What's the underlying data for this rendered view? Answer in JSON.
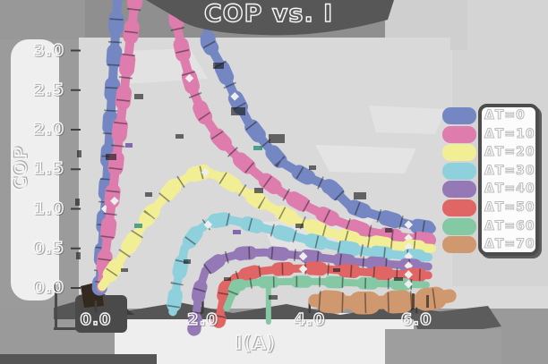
{
  "window": {
    "title": "COP vs. I"
  },
  "chart_data": {
    "type": "line",
    "title": "COP vs. I",
    "xlabel": "I(A)",
    "ylabel": "COP",
    "xlim": [
      -0.3,
      6.6
    ],
    "ylim": [
      -0.26,
      3.26
    ],
    "grid": false,
    "legend_position": "right",
    "style_note": "hand-painted ribbon strokes, hollow white outline text, white diamond markers",
    "x_ticks": {
      "values": [
        0,
        2,
        4,
        6
      ],
      "labels": [
        "0.0",
        "2.0",
        "4.0",
        "6.0"
      ]
    },
    "y_ticks": {
      "values": [
        0,
        0.5,
        1,
        1.5,
        2,
        2.5,
        3
      ],
      "labels": [
        "0.0",
        "0.5",
        "1.0",
        "1.5",
        "2.0",
        "2.5",
        "3.0"
      ]
    },
    "series": [
      {
        "name": "ΔT=0",
        "color": "#7487c2",
        "stroke_width": 10,
        "points": [
          [
            0.07,
            0.0
          ],
          [
            0.2,
            1.3
          ],
          [
            0.42,
            3.8
          ],
          [
            1.2,
            6.5
          ],
          [
            2.02,
            4.2
          ],
          [
            2.1,
            3.1
          ],
          [
            2.35,
            2.8
          ],
          [
            2.6,
            2.42
          ],
          [
            2.85,
            2.1
          ],
          [
            3.1,
            1.88
          ],
          [
            3.45,
            1.6
          ],
          [
            3.9,
            1.42
          ],
          [
            4.4,
            1.27
          ],
          [
            4.75,
            1.04
          ],
          [
            5.1,
            0.95
          ],
          [
            5.6,
            0.85
          ],
          [
            6.0,
            0.78
          ],
          [
            6.28,
            0.75
          ]
        ],
        "markers": [
          [
            0.18,
            1.0
          ],
          [
            2.6,
            2.42
          ],
          [
            5.85,
            0.8
          ]
        ],
        "drip": null
      },
      {
        "name": "ΔT=10",
        "color": "#de7cad",
        "stroke_width": 10,
        "points": [
          [
            0.1,
            0.0
          ],
          [
            0.3,
            1.1
          ],
          [
            0.55,
            2.6
          ],
          [
            0.78,
            3.9
          ],
          [
            1.05,
            5.4
          ],
          [
            1.42,
            4.1
          ],
          [
            1.52,
            3.3
          ],
          [
            1.65,
            2.9
          ],
          [
            1.82,
            2.5
          ],
          [
            2.0,
            2.2
          ],
          [
            2.3,
            1.9
          ],
          [
            2.7,
            1.62
          ],
          [
            3.05,
            1.42
          ],
          [
            3.5,
            1.2
          ],
          [
            3.95,
            1.03
          ],
          [
            4.5,
            0.85
          ],
          [
            5.0,
            0.73
          ],
          [
            5.5,
            0.66
          ],
          [
            6.0,
            0.62
          ],
          [
            6.28,
            0.6
          ]
        ],
        "markers": [
          [
            0.35,
            1.1
          ],
          [
            1.75,
            2.65
          ],
          [
            5.85,
            0.63
          ]
        ],
        "drip": null
      },
      {
        "name": "ΔT=20",
        "color": "#f2ee96",
        "stroke_width": 10,
        "points": [
          [
            0.12,
            0.02
          ],
          [
            0.55,
            0.45
          ],
          [
            1.0,
            0.92
          ],
          [
            1.45,
            1.28
          ],
          [
            1.8,
            1.43
          ],
          [
            2.05,
            1.47
          ],
          [
            2.35,
            1.4
          ],
          [
            2.75,
            1.23
          ],
          [
            3.1,
            1.08
          ],
          [
            3.7,
            0.87
          ],
          [
            4.2,
            0.73
          ],
          [
            4.8,
            0.62
          ],
          [
            5.4,
            0.55
          ],
          [
            6.0,
            0.51
          ],
          [
            6.28,
            0.5
          ]
        ],
        "markers": [
          [
            2.05,
            1.46
          ],
          [
            5.85,
            0.52
          ]
        ],
        "drip": null
      },
      {
        "name": "ΔT=30",
        "color": "#8fd0dd",
        "stroke_width": 9.5,
        "points": [
          [
            1.44,
            -0.3
          ],
          [
            1.52,
            0.05
          ],
          [
            1.66,
            0.5
          ],
          [
            1.9,
            0.72
          ],
          [
            2.15,
            0.84
          ],
          [
            2.45,
            0.87
          ],
          [
            2.85,
            0.81
          ],
          [
            3.35,
            0.72
          ],
          [
            3.95,
            0.61
          ],
          [
            4.55,
            0.52
          ],
          [
            5.15,
            0.45
          ],
          [
            5.75,
            0.41
          ],
          [
            6.22,
            0.39
          ]
        ],
        "markers": [
          [
            2.1,
            0.8
          ],
          [
            5.85,
            0.4
          ]
        ],
        "drip": null
      },
      {
        "name": "ΔT=40",
        "color": "#9579b6",
        "stroke_width": 9,
        "points": [
          [
            1.84,
            -0.52
          ],
          [
            1.93,
            -0.05
          ],
          [
            2.05,
            0.22
          ],
          [
            2.35,
            0.37
          ],
          [
            2.75,
            0.44
          ],
          [
            3.15,
            0.45
          ],
          [
            3.65,
            0.42
          ],
          [
            4.25,
            0.38
          ],
          [
            4.85,
            0.33
          ],
          [
            5.45,
            0.3
          ],
          [
            6.0,
            0.28
          ],
          [
            6.22,
            0.27
          ]
        ],
        "markers": [
          [
            3.88,
            0.4
          ],
          [
            5.85,
            0.28
          ]
        ],
        "drip": null
      },
      {
        "name": "ΔT=50",
        "color": "#e06565",
        "stroke_width": 9,
        "points": [
          [
            2.3,
            -0.42
          ],
          [
            2.42,
            0.0
          ],
          [
            2.6,
            0.13
          ],
          [
            2.95,
            0.2
          ],
          [
            3.45,
            0.24
          ],
          [
            4.05,
            0.25
          ],
          [
            4.65,
            0.22
          ],
          [
            5.25,
            0.19
          ],
          [
            5.85,
            0.17
          ],
          [
            6.22,
            0.16
          ]
        ],
        "markers": [
          [
            3.88,
            0.24
          ],
          [
            5.85,
            0.17
          ]
        ],
        "drip": null
      },
      {
        "name": "ΔT=60",
        "color": "#85c8a4",
        "stroke_width": 8,
        "points": [
          [
            2.45,
            -0.25
          ],
          [
            2.62,
            0.03
          ],
          [
            3.0,
            0.07
          ],
          [
            3.6,
            0.08
          ],
          [
            4.2,
            0.08
          ],
          [
            5.0,
            0.06
          ],
          [
            5.6,
            0.05
          ],
          [
            6.18,
            0.04
          ]
        ],
        "markers": [
          [
            5.85,
            0.05
          ]
        ],
        "drip": [
          3.23,
          -0.43
        ]
      },
      {
        "name": "ΔT=70",
        "color": "#d0986f",
        "stroke_width": 15,
        "points": [
          [
            4.1,
            -0.16
          ],
          [
            4.5,
            -0.18
          ],
          [
            5.0,
            -0.19
          ],
          [
            5.5,
            -0.18
          ],
          [
            6.0,
            -0.16
          ],
          [
            6.35,
            -0.13
          ],
          [
            6.62,
            -0.1
          ]
        ],
        "markers": [],
        "drip": null
      }
    ]
  }
}
